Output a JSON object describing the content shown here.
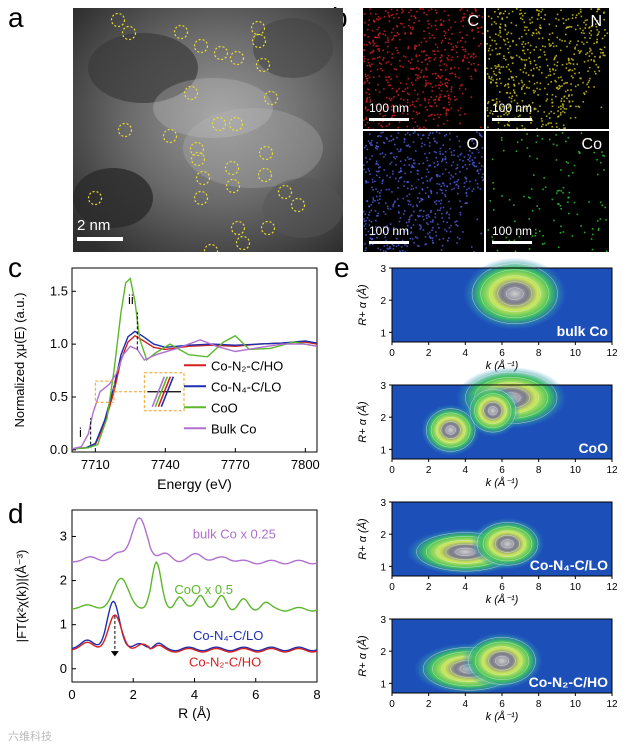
{
  "panel_letters": {
    "a": "a",
    "b": "b",
    "c": "c",
    "d": "d",
    "e": "e"
  },
  "panel_a": {
    "scale_bar": "2 nm"
  },
  "panel_b": {
    "maps": [
      {
        "element": "C",
        "scale": "100 nm",
        "color": "#d42020"
      },
      {
        "element": "N",
        "scale": "100 nm",
        "color": "#c8c020"
      },
      {
        "element": "O",
        "scale": "100 nm",
        "color": "#4a5ad8"
      },
      {
        "element": "Co",
        "scale": "100 nm",
        "color": "#28c828"
      }
    ]
  },
  "panel_c": {
    "ylabel": "Normalized χμ(E) (a.u.)",
    "xlabel": "Energy (eV)",
    "x_ticks": [
      "7710",
      "7740",
      "7770",
      "7800"
    ],
    "y_ticks": [
      "0.0",
      "0.5",
      "1.0",
      "1.5"
    ],
    "annot_i": "i",
    "annot_ii": "ii",
    "legend": [
      {
        "name": "Co-N₂-C/HO",
        "color": "#d42020"
      },
      {
        "name": "Co-N₄-C/LO",
        "color": "#1f2fb0"
      },
      {
        "name": "CoO",
        "color": "#5cb82a"
      },
      {
        "name": "Bulk Co",
        "color": "#b070d0"
      }
    ]
  },
  "panel_d": {
    "ylabel": "|FT(k²χ(k))|(Å⁻³)",
    "xlabel": "R (Å)",
    "x_ticks": [
      "0",
      "2",
      "4",
      "6",
      "8"
    ],
    "y_ticks": [
      "0",
      "1",
      "2",
      "3"
    ],
    "labels": [
      {
        "text": "bulk Co x 0.25",
        "color": "#b070d0"
      },
      {
        "text": "CoO x 0.5",
        "color": "#5cb82a"
      },
      {
        "text": "Co-N₄-C/LO",
        "color": "#1f2fb0"
      },
      {
        "text": "Co-N₂-C/HO",
        "color": "#d42020"
      }
    ]
  },
  "panel_e": {
    "ylabel": "R+ α (Å)",
    "xlabel": "k (Å⁻¹)",
    "x_ticks": [
      "0",
      "2",
      "4",
      "6",
      "8",
      "10",
      "12"
    ],
    "y_ticks": [
      "1",
      "2",
      "3"
    ],
    "maps": [
      {
        "label": "bulk Co"
      },
      {
        "label": "CoO"
      },
      {
        "label": "Co-N₄-C/LO"
      },
      {
        "label": "Co-N₂-C/HO"
      }
    ]
  },
  "watermark": "六维科技"
}
